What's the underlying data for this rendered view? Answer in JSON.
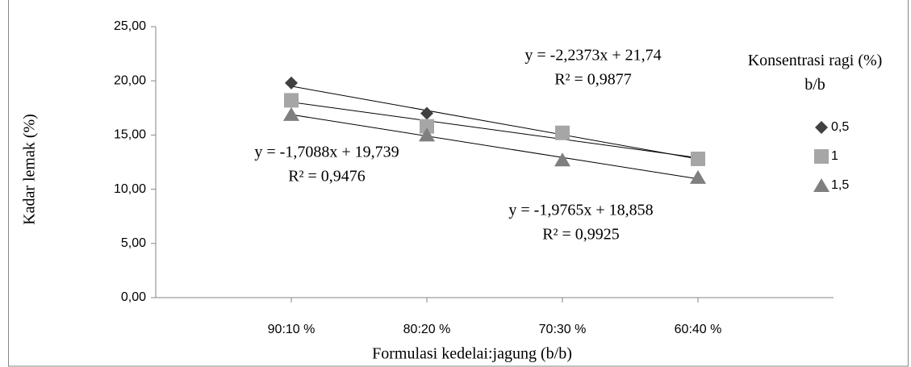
{
  "chart_data": {
    "type": "scatter",
    "x_label": "Formulasi kedelai:jagung (b/b)",
    "y_label": "Kadar lemak (%)",
    "x": [
      1,
      2,
      3,
      4
    ],
    "xlim": [
      0,
      5
    ],
    "xticks": [
      {
        "value": 1,
        "label": "90:10 %"
      },
      {
        "value": 2,
        "label": "80:20 %"
      },
      {
        "value": 3,
        "label": "70:30 %"
      },
      {
        "value": 4,
        "label": "60:40 %"
      }
    ],
    "ylim": [
      0,
      25
    ],
    "yticks": [
      {
        "value": 0,
        "label": "0,00"
      },
      {
        "value": 5,
        "label": "5,00"
      },
      {
        "value": 10,
        "label": "10,00"
      },
      {
        "value": 15,
        "label": "15,00"
      },
      {
        "value": 20,
        "label": "20,00"
      },
      {
        "value": 25,
        "label": "25,00"
      }
    ],
    "legend_title": "Konsentrasi ragi (%) b/b",
    "series": [
      {
        "name": "0,5",
        "color": "#404040",
        "marker": "diamond",
        "values": [
          19.8,
          17.0,
          15.2,
          12.9
        ],
        "trendline": {
          "slope": -2.2373,
          "intercept": 21.74,
          "equation": "y = -2,2373x + 21,74",
          "r2": "R² = 0,9877"
        }
      },
      {
        "name": "1",
        "color": "#a6a6a6",
        "marker": "square",
        "values": [
          18.2,
          15.8,
          15.2,
          12.8
        ],
        "trendline": {
          "slope": -1.7088,
          "intercept": 19.739,
          "equation": "y = -1,7088x + 19,739",
          "r2": "R² = 0,9476"
        }
      },
      {
        "name": "1,5",
        "color": "#7f7f7f",
        "marker": "triangle",
        "values": [
          16.9,
          15.0,
          12.7,
          11.1
        ],
        "trendline": {
          "slope": -1.9765,
          "intercept": 18.858,
          "equation": "y = -1,9765x + 18,858",
          "r2": "R² = 0,9925"
        }
      }
    ]
  }
}
